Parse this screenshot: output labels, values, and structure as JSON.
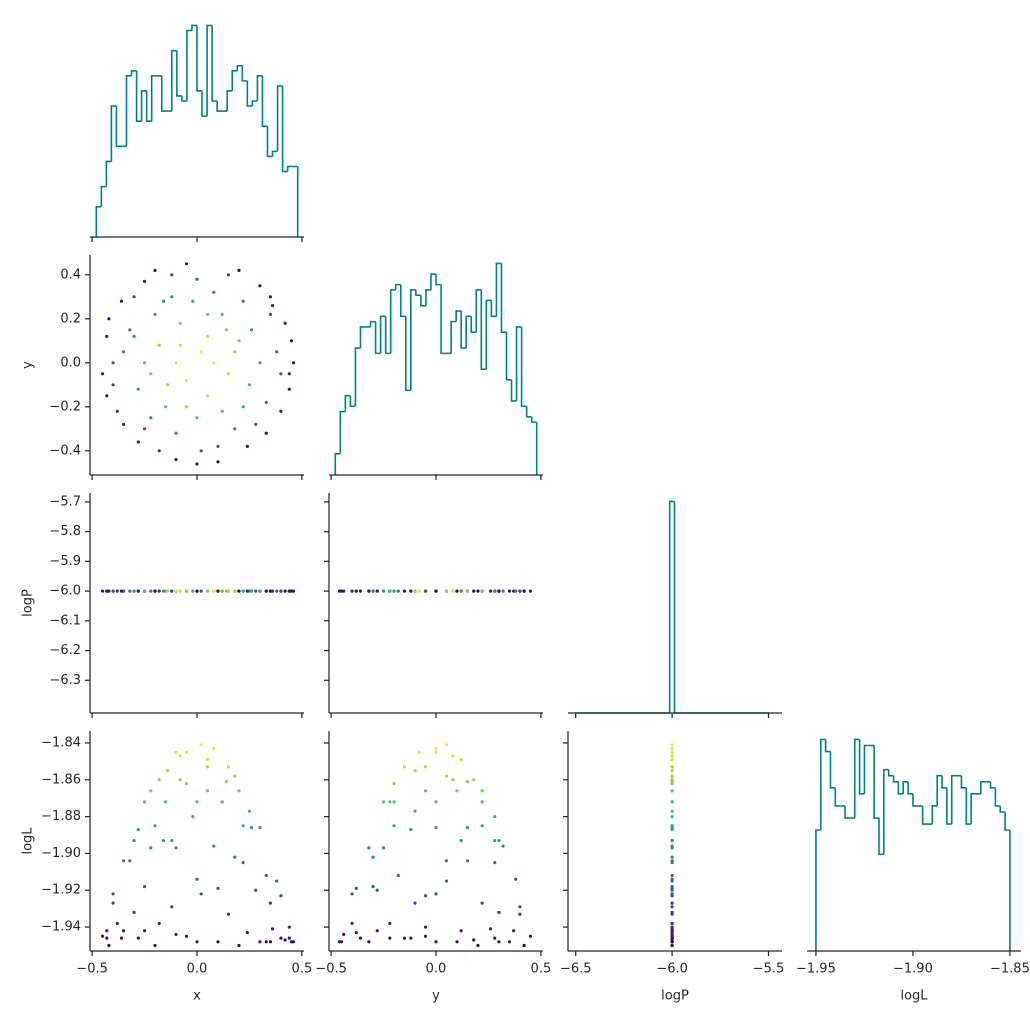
{
  "chart_data": {
    "type": "corner",
    "hist_color": "#008080",
    "colormap": "viridis",
    "color_by": "logL",
    "variables": [
      {
        "name": "x",
        "xlim": [
          -0.51,
          0.51
        ],
        "xticks": [
          {
            "value": -0.5,
            "label": "−0.5"
          },
          {
            "value": 0,
            "label": "0.0"
          },
          0.5
        ]
      },
      {
        "name": "y",
        "xlim": [
          -0.51,
          0.51
        ],
        "ylim": [
          -0.51,
          0.49
        ],
        "xticks": [
          {
            "value": -0.5,
            "label": "−0.5"
          },
          {
            "value": 0,
            "label": "0.0"
          },
          0.5
        ],
        "yticks": [
          {
            "value": -0.4,
            "label": "−0.4"
          },
          {
            "value": -0.2,
            "label": "−0.2"
          },
          {
            "value": 0,
            "label": "0.0"
          },
          0.2,
          0.4
        ]
      },
      {
        "name": "logP",
        "xlim": [
          -6.54,
          -5.43
        ],
        "ylim": [
          -6.41,
          -5.67
        ],
        "xticks": [
          {
            "value": -6.5,
            "label": "−6.5"
          },
          {
            "value": -6.0,
            "label": "−6.0"
          },
          {
            "value": -5.5,
            "label": "−5.5"
          }
        ],
        "yticks": [
          {
            "value": -6.3,
            "label": "−6.3"
          },
          {
            "value": -6.2,
            "label": "−6.2"
          },
          {
            "value": -6.1,
            "label": "−6.1"
          },
          {
            "value": -6.0,
            "label": "−6.0"
          },
          {
            "value": -5.9,
            "label": "−5.9"
          },
          {
            "value": -5.8,
            "label": "−5.8"
          },
          {
            "value": -5.7,
            "label": "−5.7"
          }
        ]
      },
      {
        "name": "logL",
        "xlim": [
          -1.9546,
          -1.8443
        ],
        "ylim": [
          -1.953,
          -1.8335
        ],
        "xticks": [
          {
            "value": -1.95,
            "label": "−1.95"
          },
          {
            "value": -1.9,
            "label": "−1.90"
          },
          {
            "value": -1.85,
            "label": "−1.85"
          }
        ],
        "yticks": [
          {
            "value": -1.94,
            "label": "−1.94"
          },
          {
            "value": -1.92,
            "label": "−1.92"
          },
          {
            "value": -1.9,
            "label": "−1.90"
          },
          {
            "value": -1.88,
            "label": "−1.88"
          },
          {
            "value": -1.86,
            "label": "−1.86"
          },
          {
            "value": -1.84,
            "label": "−1.84"
          }
        ]
      }
    ],
    "histograms": [
      {
        "bins": [
          -0.48,
          -0.456,
          -0.432,
          -0.408,
          -0.384,
          -0.36,
          -0.336,
          -0.312,
          -0.288,
          -0.264,
          -0.24,
          -0.216,
          -0.192,
          -0.168,
          -0.144,
          -0.12,
          -0.096,
          -0.072,
          -0.048,
          -0.024,
          0,
          0.024,
          0.048,
          0.072,
          0.096,
          0.12,
          0.144,
          0.168,
          0.192,
          0.216,
          0.24,
          0.264,
          0.288,
          0.312,
          0.336,
          0.36,
          0.384,
          0.408,
          0.432,
          0.456,
          0.48
        ],
        "counts": [
          6,
          10,
          15,
          26,
          18,
          18,
          32,
          33,
          23,
          29,
          23,
          32,
          32,
          25,
          25,
          37,
          28,
          27,
          41,
          42,
          29,
          24,
          42,
          27,
          25,
          25,
          29,
          33,
          34,
          31,
          26,
          27,
          32,
          22,
          16,
          17,
          30,
          13,
          14,
          14
        ]
      },
      {
        "bins": [
          -0.48,
          -0.456,
          -0.432,
          -0.408,
          -0.384,
          -0.36,
          -0.336,
          -0.312,
          -0.288,
          -0.264,
          -0.24,
          -0.216,
          -0.192,
          -0.168,
          -0.144,
          -0.12,
          -0.096,
          -0.072,
          -0.048,
          -0.024,
          0,
          0.024,
          0.048,
          0.072,
          0.096,
          0.12,
          0.144,
          0.168,
          0.192,
          0.216,
          0.24,
          0.264,
          0.288,
          0.312,
          0.336,
          0.36,
          0.384,
          0.408,
          0.432,
          0.456,
          0.48
        ],
        "counts": [
          4,
          12,
          15,
          13,
          24,
          28,
          28,
          29,
          23,
          30,
          23,
          35,
          36,
          30,
          16,
          35,
          34,
          32,
          35,
          38,
          36,
          23,
          23,
          29,
          31,
          24,
          30,
          27,
          35,
          20,
          33,
          30,
          40,
          27,
          18,
          14,
          28,
          13,
          11,
          10
        ]
      },
      {
        "bins": [
          -6.5,
          -6.0125,
          -5.9875,
          -5.5
        ],
        "counts": [
          0,
          1000,
          0
        ]
      },
      {
        "bins": [
          -1.95,
          -1.9475,
          -1.945,
          -1.9425,
          -1.94,
          -1.9375,
          -1.935,
          -1.9325,
          -1.93,
          -1.9275,
          -1.925,
          -1.9225,
          -1.92,
          -1.9175,
          -1.915,
          -1.9125,
          -1.91,
          -1.9075,
          -1.905,
          -1.9025,
          -1.9,
          -1.8975,
          -1.895,
          -1.8925,
          -1.89,
          -1.8875,
          -1.885,
          -1.8825,
          -1.88,
          -1.8775,
          -1.875,
          -1.8725,
          -1.87,
          -1.8675,
          -1.865,
          -1.8625,
          -1.86,
          -1.8575,
          -1.855,
          -1.8525,
          -1.85
        ],
        "counts": [
          20,
          35,
          33,
          27,
          24,
          24,
          22,
          22,
          35,
          26,
          34,
          34,
          22,
          16,
          30,
          29,
          28,
          26,
          28,
          26,
          24,
          24,
          21,
          21,
          24,
          29,
          27,
          21,
          29,
          29,
          27,
          21,
          26,
          26,
          28,
          28,
          27,
          24,
          23,
          20
        ]
      }
    ],
    "samples": {
      "x": [
        0.02,
        -0.12,
        0.35,
        -0.4,
        0.1,
        -0.25,
        0.44,
        -0.05,
        0.2,
        -0.18,
        0.05,
        -0.3,
        0.28,
        -0.43,
        0.15,
        -0.1,
        0.38,
        -0.22,
        0.0,
        0.12,
        -0.35,
        0.3,
        -0.08,
        0.25,
        -0.45,
        0.45,
        -0.15,
        0.08,
        -0.32,
        0.33,
        -0.05,
        0.18,
        -0.25,
        0.4,
        -0.38,
        0.22,
        -0.2,
        0.05,
        -0.1,
        0.3,
        -0.42,
        0.1,
        0.42,
        -0.12,
        0.15,
        -0.28,
        0.02,
        -0.35,
        0.26,
        -0.02,
        0.33,
        -0.18,
        0.2,
        -0.36,
        0.08,
        -0.08,
        0.12,
        -0.25,
        0.35,
        -0.43,
        0.44,
        -0.28,
        0.0,
        0.18,
        -0.14,
        0.24,
        -0.05,
        0.36,
        -0.2,
        0.05,
        -0.3,
        0.22,
        -0.1,
        0.4,
        -0.22,
        0.14,
        -0.4,
        0.0,
        0.46,
        -0.16
      ],
      "y": [
        0.05,
        0.3,
        0.22,
        -0.1,
        -0.38,
        -0.3,
        -0.05,
        0.45,
        0.1,
        0.08,
        -0.15,
        0.3,
        -0.28,
        0.12,
        0.4,
        -0.44,
        0.05,
        -0.05,
        -0.25,
        0.22,
        -0.28,
        0.35,
        0.18,
        -0.1,
        -0.05,
        0.1,
        -0.2,
        0.32,
        0.15,
        -0.18,
        -0.08,
        -0.3,
        0.37,
        -0.22,
        -0.22,
        0.28,
        0.22,
        0.12,
        -0.32,
        0.0,
        0.2,
        -0.45,
        0.18,
        0.4,
        -0.05,
        -0.12,
        -0.4,
        0.05,
        0.15,
        0.28,
        -0.32,
        -0.4,
        0.42,
        0.28,
        0.0,
        0.08,
        -0.22,
        0.0,
        0.3,
        -0.15,
        -0.12,
        -0.36,
        0.38,
        0.05,
        -0.1,
        -0.38,
        -0.2,
        0.26,
        0.42,
        0.22,
        0.12,
        -0.2,
        0.0,
        -0.05,
        -0.25,
        0.15,
        0.0,
        -0.46,
        0.0,
        0.28
      ],
      "logP": [
        -6,
        -6,
        -6,
        -6,
        -6,
        -6,
        -6,
        -6,
        -6,
        -6,
        -6,
        -6,
        -6,
        -6,
        -6,
        -6,
        -6,
        -6,
        -6,
        -6,
        -6,
        -6,
        -6,
        -6,
        -6,
        -6,
        -6,
        -6,
        -6,
        -6,
        -6,
        -6,
        -6,
        -6,
        -6,
        -6,
        -6,
        -6,
        -6,
        -6,
        -6,
        -6,
        -6,
        -6,
        -6,
        -6,
        -6,
        -6,
        -6,
        -6,
        -6,
        -6,
        -6,
        -6,
        -6,
        -6,
        -6,
        -6,
        -6,
        -6,
        -6,
        -6,
        -6,
        -6,
        -6,
        -6,
        -6,
        -6,
        -6,
        -6,
        -6,
        -6,
        -6,
        -6,
        -6,
        -6,
        -6,
        -6,
        -6,
        -6
      ],
      "logL": [
        -1.841,
        -1.893,
        -1.927,
        -1.927,
        -1.919,
        -1.918,
        -1.94,
        -1.945,
        -1.866,
        -1.86,
        -1.853,
        -1.932,
        -1.92,
        -1.942,
        -1.933,
        -1.944,
        -1.915,
        -1.866,
        -1.872,
        -1.872,
        -1.942,
        -1.948,
        -1.86,
        -1.877,
        -1.945,
        -1.948,
        -1.872,
        -1.896,
        -1.904,
        -1.912,
        -1.845,
        -1.902,
        -1.942,
        -1.946,
        -1.938,
        -1.905,
        -1.885,
        -1.849,
        -1.897,
        -1.886,
        -1.95,
        -1.948,
        -1.947,
        -1.929,
        -1.853,
        -1.887,
        -1.922,
        -1.904,
        -1.886,
        -1.88,
        -1.948,
        -1.938,
        -1.95,
        -1.946,
        -1.843,
        -1.847,
        -1.872,
        -1.872,
        -1.948,
        -1.946,
        -1.946,
        -1.946,
        -1.914,
        -1.858,
        -1.855,
        -1.943,
        -1.862,
        -1.941,
        -1.95,
        -1.866,
        -1.893,
        -1.885,
        -1.845,
        -1.923,
        -1.897,
        -1.861,
        -1.922,
        -1.948,
        -1.948,
        -1.893
      ]
    }
  }
}
